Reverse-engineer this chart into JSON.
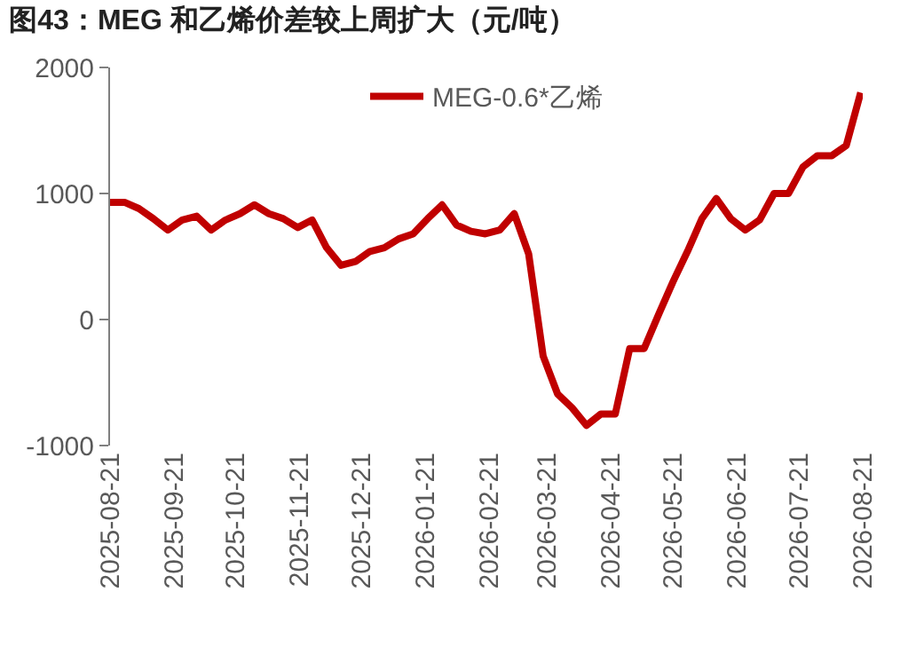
{
  "chart_data": {
    "type": "line",
    "title": "图43：MEG 和乙烯价差较上周扩大（元/吨）",
    "x": [
      "2025-08-21",
      "2025-08-28",
      "2025-09-04",
      "2025-09-11",
      "2025-09-18",
      "2025-09-25",
      "2025-10-02",
      "2025-10-09",
      "2025-10-16",
      "2025-10-23",
      "2025-10-30",
      "2025-11-06",
      "2025-11-13",
      "2025-11-20",
      "2025-11-27",
      "2025-12-04",
      "2025-12-11",
      "2025-12-18",
      "2025-12-25",
      "2026-01-01",
      "2026-01-08",
      "2026-01-15",
      "2026-01-22",
      "2026-01-29",
      "2026-02-05",
      "2026-02-12",
      "2026-02-19",
      "2026-02-26",
      "2026-03-05",
      "2026-03-12",
      "2026-03-19",
      "2026-03-26",
      "2026-04-02",
      "2026-04-09",
      "2026-04-16",
      "2026-04-23",
      "2026-04-30",
      "2026-05-07",
      "2026-05-14",
      "2026-05-21",
      "2026-05-28",
      "2026-06-04",
      "2026-06-11",
      "2026-06-18",
      "2026-06-25",
      "2026-07-02",
      "2026-07-09",
      "2026-07-16",
      "2026-07-23",
      "2026-07-30",
      "2026-08-06",
      "2026-08-13",
      "2026-08-20"
    ],
    "series": [
      {
        "name": "MEG-0.6*乙烯",
        "color": "#c00000",
        "values": [
          930,
          930,
          880,
          800,
          710,
          790,
          820,
          710,
          790,
          840,
          910,
          840,
          800,
          730,
          790,
          570,
          430,
          460,
          540,
          570,
          640,
          680,
          800,
          910,
          750,
          700,
          680,
          710,
          840,
          520,
          -290,
          -590,
          -700,
          -840,
          -750,
          -750,
          -230,
          -230,
          40,
          300,
          540,
          800,
          960,
          800,
          710,
          790,
          1000,
          1000,
          1210,
          1300,
          1300,
          1380,
          1800
        ]
      }
    ],
    "xlim": [
      "2025-08-21",
      "2026-08-21"
    ],
    "xticks": [
      "2025-08-21",
      "2025-09-21",
      "2025-10-21",
      "2025-11-21",
      "2025-12-21",
      "2026-01-21",
      "2026-02-21",
      "2026-03-21",
      "2026-04-21",
      "2026-05-21",
      "2026-06-21",
      "2026-07-21",
      "2026-08-21"
    ],
    "ylim": [
      -1000,
      2000
    ],
    "yticks": [
      -1000,
      0,
      1000,
      2000
    ],
    "grid": false,
    "legend": "top",
    "marker": "none",
    "line_style": "solid"
  }
}
